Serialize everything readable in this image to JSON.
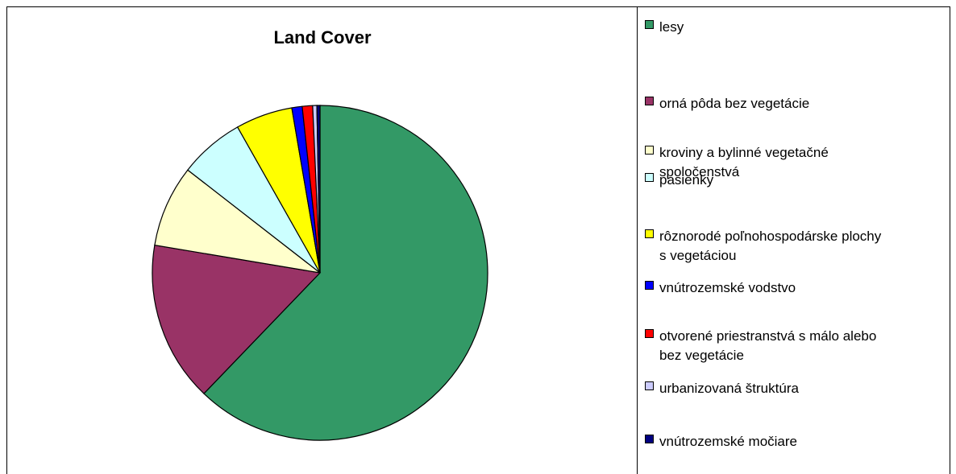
{
  "chart_data": {
    "type": "pie",
    "title": "Land Cover",
    "legend_position": "right",
    "slices": [
      {
        "label": "lesy",
        "value": 62.3,
        "color": "#339966"
      },
      {
        "label": "orná pôda bez vegetácie",
        "value": 15.5,
        "color": "#993366"
      },
      {
        "label": "kroviny a bylinné vegetačné\nspoločenstvá",
        "value": 7.9,
        "color": "#ffffcc"
      },
      {
        "label": "pasienky",
        "value": 6.3,
        "color": "#ccffff"
      },
      {
        "label": "rôznorodé poľnohospodárske plochy\ns vegetáciou",
        "value": 5.5,
        "color": "#ffff00"
      },
      {
        "label": "vnútrozemské vodstvo",
        "value": 1.0,
        "color": "#0000ff"
      },
      {
        "label": "otvorené priestranstvá s málo alebo\nbez vegetácie",
        "value": 1.0,
        "color": "#ff0000"
      },
      {
        "label": "urbanizovaná štruktúra",
        "value": 0.4,
        "color": "#ccccff"
      },
      {
        "label": "vnútrozemské močiare",
        "value": 0.3,
        "color": "#000080"
      }
    ]
  }
}
